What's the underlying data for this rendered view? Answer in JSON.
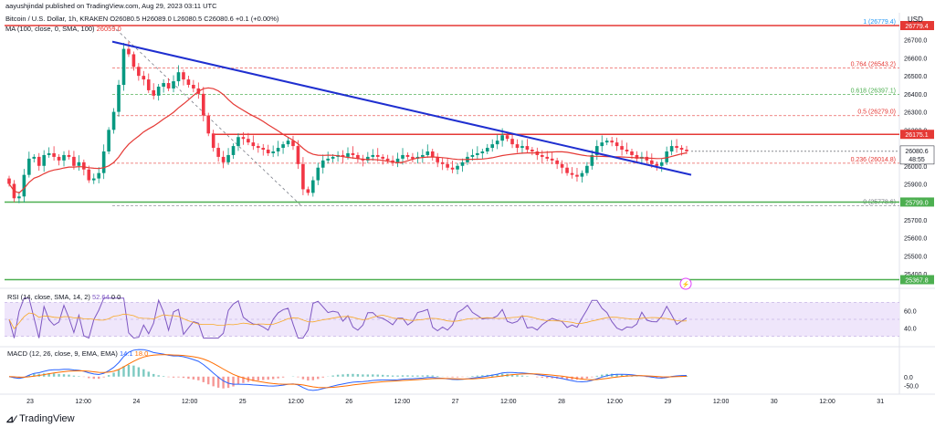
{
  "header": {
    "publisher": "aayushjindal published on TradingView.com, Aug 29, 2023 03:11 UTC"
  },
  "symbol_line": "Bitcoin / U.S. Dollar, 1h, KRAKEN  O26080.5  H26089.0  L26080.5  C26080.6  +0.1 (+0.00%)",
  "ma_label": {
    "text": "MA (100, close, 0, SMA, 100)",
    "value": "26059.0"
  },
  "currency": "USD",
  "footer": {
    "brand": "TradingView"
  },
  "rsi_label": {
    "text": "RSI (14, close, SMA, 14, 2)",
    "value": "52.64",
    "extra": "0  0"
  },
  "macd_label": {
    "text": "MACD (12, 26, close, 9, EMA, EMA)",
    "v1": "14.1",
    "v2": "18.0"
  },
  "colors": {
    "up": "#089981",
    "down": "#f23645",
    "ma": "#e53935",
    "trend": "#1f2fd0",
    "support": "#4caf50",
    "resistance": "#e53935",
    "fib": "#e53935",
    "rsi": "#7e57c2",
    "rsi_band": "#efe6fb",
    "macd": "#2962ff",
    "signal": "#ff6d00"
  },
  "chart_data": {
    "type": "candlestick",
    "timeframe": "1h",
    "y_axis_ticks": [
      "26700.0",
      "26600.0",
      "26500.0",
      "26400.0",
      "26300.0",
      "26200.0",
      "26000.0",
      "25900.0",
      "25800.0",
      "25700.0",
      "25600.0",
      "25500.0",
      "25400.0"
    ],
    "x_axis_ticks": [
      "23",
      "12:00",
      "24",
      "12:00",
      "25",
      "12:00",
      "26",
      "12:00",
      "27",
      "12:00",
      "28",
      "12:00",
      "29",
      "12:00",
      "30",
      "12:00",
      "31"
    ],
    "ylim": [
      25340,
      26820
    ],
    "price_labels": {
      "resistance": "26175.1",
      "current": "26080.6",
      "countdown": "48:55",
      "support_1": "25799.0",
      "support_2": "25367.8",
      "top": "26779.4"
    },
    "fib_levels": [
      {
        "label": "1 (26779.4)",
        "value": 26779.4
      },
      {
        "label": "0.764 (26543.2)",
        "value": 26543.2
      },
      {
        "label": "0.618 (26397.1)",
        "value": 26397.1
      },
      {
        "label": "0.5 (26279.0)",
        "value": 26279.0
      },
      {
        "label": "0.236 (26014.8)",
        "value": 26014.8
      },
      {
        "label": "0 (25778.6)",
        "value": 25778.6
      }
    ],
    "horizontal_lines": [
      {
        "name": "resistance",
        "value": 26175.1
      },
      {
        "name": "support",
        "value": 25799.0
      },
      {
        "name": "support",
        "value": 25367.8
      },
      {
        "name": "top",
        "value": 26779.4
      }
    ],
    "trend_line": {
      "from": [
        123,
        26690
      ],
      "to": [
        130,
        25950
      ]
    },
    "ohlc_close": [
      25900,
      25820,
      25830,
      25950,
      26040,
      26050,
      26000,
      26060,
      26070,
      26050,
      26030,
      26060,
      26050,
      26000,
      26020,
      25980,
      25920,
      25930,
      25960,
      26080,
      26200,
      26300,
      26450,
      26650,
      26620,
      26550,
      26500,
      26480,
      26420,
      26390,
      26440,
      26460,
      26430,
      26470,
      26520,
      26480,
      26450,
      26430,
      26400,
      26280,
      26180,
      26100,
      26050,
      26020,
      26060,
      26110,
      26160,
      26150,
      26130,
      26110,
      26100,
      26090,
      26070,
      26080,
      26100,
      26120,
      26140,
      26110,
      26010,
      25870,
      25850,
      25920,
      25990,
      26030,
      26040,
      26050,
      26060,
      26050,
      26070,
      26060,
      26040,
      26030,
      26050,
      26060,
      26050,
      26040,
      26030,
      26020,
      26040,
      26060,
      26050,
      26040,
      26050,
      26060,
      26080,
      26050,
      26020,
      26010,
      25990,
      25980,
      26000,
      26020,
      26050,
      26060,
      26070,
      26080,
      26100,
      26120,
      26140,
      26170,
      26150,
      26120,
      26100,
      26110,
      26090,
      26080,
      26060,
      26050,
      26040,
      26030,
      26010,
      25990,
      25960,
      25950,
      25940,
      25960,
      26000,
      26060,
      26110,
      26130,
      26140,
      26130,
      26110,
      26090,
      26080,
      26060,
      26040,
      26050,
      26030,
      26010,
      26000,
      26020,
      26080,
      26110,
      26100,
      26090,
      26081
    ],
    "ma100": "red smoothed line, ~26100 over most of the range",
    "rsi": {
      "y_axis_ticks": [
        "60.0",
        "40.0"
      ],
      "ylim": [
        20,
        80
      ],
      "band": [
        40,
        70
      ]
    },
    "macd": {
      "y_axis_ticks": [
        "0.0",
        "-50.0"
      ],
      "ylim": [
        -90,
        140
      ]
    },
    "grid": false
  }
}
